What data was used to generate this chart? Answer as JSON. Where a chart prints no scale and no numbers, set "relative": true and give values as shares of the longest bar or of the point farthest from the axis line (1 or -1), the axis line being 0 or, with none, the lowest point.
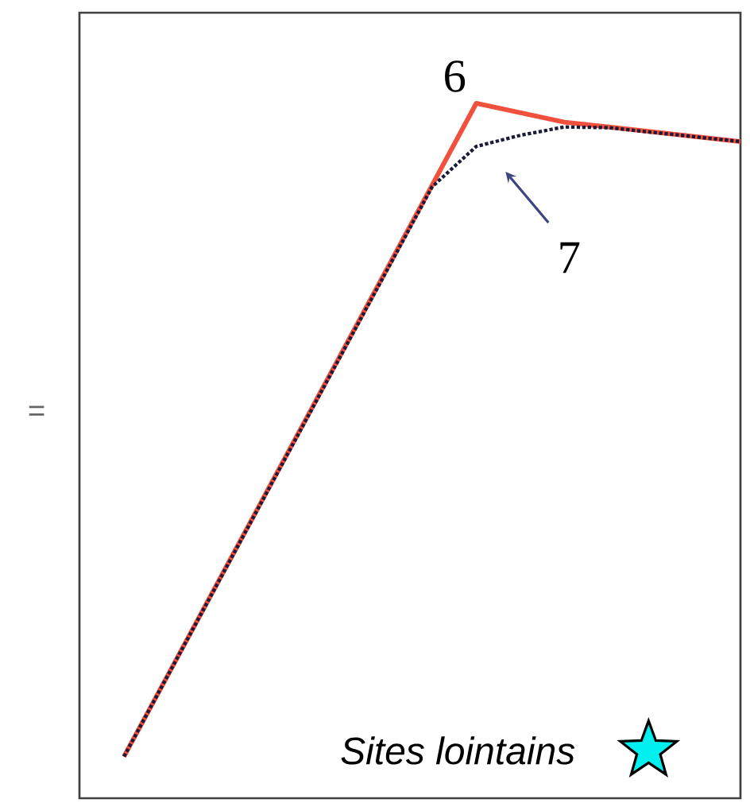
{
  "chart_data": {
    "type": "line",
    "relative": true,
    "ylabel": "=",
    "categories": [
      null,
      null,
      null,
      null,
      null,
      null,
      null,
      null,
      null,
      null,
      null,
      null,
      null,
      null,
      null
    ],
    "series": [
      {
        "color": "#f0503c",
        "line_style": "solid",
        "values": [
          0.06,
          null,
          null,
          null,
          null,
          null,
          null,
          null,
          1.0,
          null,
          0.973,
          null,
          null,
          null,
          0.945
        ]
      },
      {
        "color": "#1a1a3a",
        "line_style": "dotted",
        "values": [
          0.06,
          null,
          null,
          null,
          null,
          null,
          null,
          0.88,
          0.938,
          0.954,
          0.966,
          0.965,
          null,
          null,
          0.945
        ]
      }
    ],
    "annotations": [
      "6",
      "7",
      "Sites lointains"
    ]
  }
}
